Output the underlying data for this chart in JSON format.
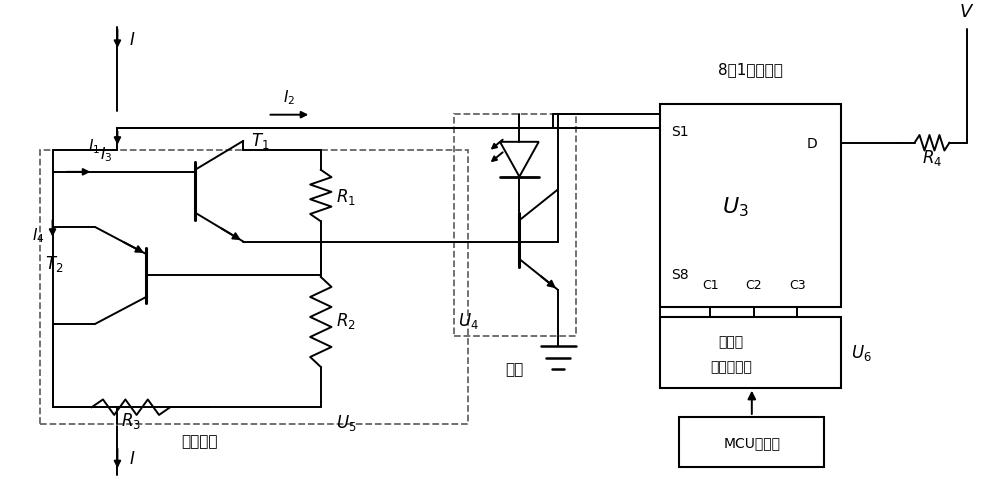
{
  "bg_color": "#ffffff",
  "line_color": "#000000",
  "dash_color": "#666666",
  "fig_width": 10.0,
  "fig_height": 4.89,
  "dpi": 100,
  "labels": {
    "I_top": "I",
    "I_bot": "I",
    "I1": "I_1",
    "I2": "I_2",
    "I3": "I_3",
    "I4": "I_4",
    "T1": "T_1",
    "T2": "T_2",
    "R1": "R_1",
    "R2": "R_2",
    "R3": "R_3",
    "R4": "R_4",
    "U3": "U_3",
    "U4": "U_4",
    "U5": "U_5",
    "U6": "U_6",
    "V": "V",
    "S1": "S1",
    "S8": "S8",
    "D": "D",
    "C1": "C1",
    "C2": "C2",
    "C3": "C3",
    "darlington": "达林顿管",
    "optocoupler": "光耦",
    "mux_title": "8选1模拟开关",
    "buf_line1": "四同相",
    "buf_line2": "三态缓冲器",
    "mcu": "MCU控制器"
  }
}
